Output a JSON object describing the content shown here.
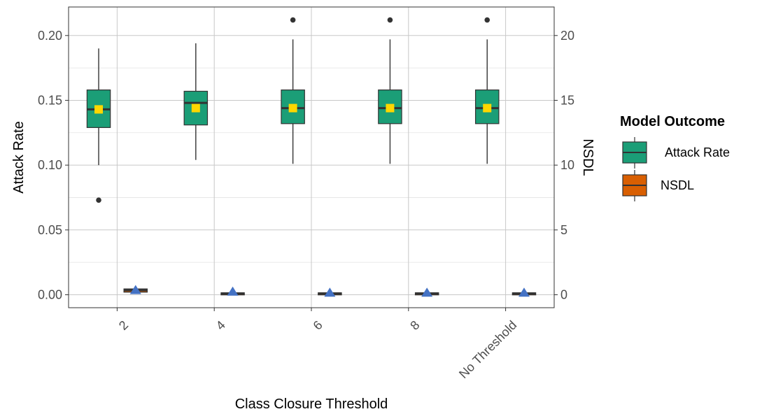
{
  "chart_data": {
    "type": "boxplot",
    "xlabel": "Class Closure Threshold",
    "ylabel_left": "Attack Rate",
    "ylabel_right": "NSDL",
    "categories": [
      "2",
      "4",
      "6",
      "8",
      "No Threshold"
    ],
    "ylim_left": [
      -0.01,
      0.222
    ],
    "yticks_left": [
      "0.00",
      "0.05",
      "0.10",
      "0.15",
      "0.20"
    ],
    "ylim_right": [
      -1,
      22.2
    ],
    "yticks_right": [
      "0",
      "5",
      "10",
      "15",
      "20"
    ],
    "grid": true,
    "legend": {
      "title": "Model Outcome",
      "position": "right",
      "entries": [
        {
          "label": "Attack Rate",
          "color": "#1b9e77"
        },
        {
          "label": "NSDL",
          "color": "#d95f02"
        }
      ]
    },
    "series": [
      {
        "name": "Attack Rate",
        "axis": "left",
        "color": "#1b9e77",
        "mean_marker_color": "#ffd700",
        "boxes": [
          {
            "category": "2",
            "whisker_low": 0.1,
            "q1": 0.129,
            "median": 0.143,
            "q3": 0.158,
            "whisker_high": 0.19,
            "mean": 0.143,
            "outliers": [
              0.073
            ]
          },
          {
            "category": "4",
            "whisker_low": 0.104,
            "q1": 0.131,
            "median": 0.148,
            "q3": 0.157,
            "whisker_high": 0.194,
            "mean": 0.144,
            "outliers": []
          },
          {
            "category": "6",
            "whisker_low": 0.101,
            "q1": 0.132,
            "median": 0.144,
            "q3": 0.158,
            "whisker_high": 0.197,
            "mean": 0.144,
            "outliers": [
              0.212
            ]
          },
          {
            "category": "8",
            "whisker_low": 0.101,
            "q1": 0.132,
            "median": 0.144,
            "q3": 0.158,
            "whisker_high": 0.197,
            "mean": 0.144,
            "outliers": [
              0.212
            ]
          },
          {
            "category": "No Threshold",
            "whisker_low": 0.101,
            "q1": 0.132,
            "median": 0.144,
            "q3": 0.158,
            "whisker_high": 0.197,
            "mean": 0.144,
            "outliers": [
              0.212
            ]
          }
        ]
      },
      {
        "name": "NSDL",
        "axis": "right",
        "color": "#d95f02",
        "mean_marker_color": "#4472c4",
        "boxes": [
          {
            "category": "2",
            "whisker_low": 0.2,
            "q1": 0.2,
            "median": 0.35,
            "q3": 0.45,
            "whisker_high": 0.45,
            "mean": 0.32,
            "outliers": []
          },
          {
            "category": "4",
            "whisker_low": 0.05,
            "q1": 0.05,
            "median": 0.1,
            "q3": 0.15,
            "whisker_high": 0.15,
            "mean": 0.2,
            "outliers": []
          },
          {
            "category": "6",
            "whisker_low": 0.05,
            "q1": 0.05,
            "median": 0.1,
            "q3": 0.15,
            "whisker_high": 0.15,
            "mean": 0.12,
            "outliers": []
          },
          {
            "category": "8",
            "whisker_low": 0.05,
            "q1": 0.05,
            "median": 0.1,
            "q3": 0.15,
            "whisker_high": 0.15,
            "mean": 0.12,
            "outliers": []
          },
          {
            "category": "No Threshold",
            "whisker_low": 0.05,
            "q1": 0.05,
            "median": 0.1,
            "q3": 0.15,
            "whisker_high": 0.15,
            "mean": 0.12,
            "outliers": []
          }
        ]
      }
    ]
  }
}
